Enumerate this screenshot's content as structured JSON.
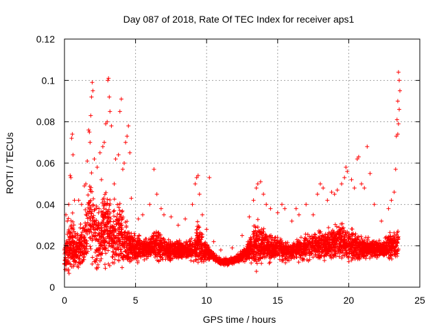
{
  "chart_data": {
    "type": "scatter",
    "title": "Day 087 of 2018, Rate Of TEC Index for receiver aps1",
    "xlabel": "GPS time / hours",
    "ylabel": "ROTI / TECUs",
    "xlim": [
      0,
      25
    ],
    "ylim": [
      0,
      0.12
    ],
    "x_ticks": [
      0,
      5,
      10,
      15,
      20,
      25
    ],
    "x_tick_labels": [
      "0",
      "5",
      "10",
      "15",
      "20",
      "25"
    ],
    "y_ticks": [
      0,
      0.02,
      0.04,
      0.06,
      0.08,
      0.1,
      0.12
    ],
    "y_tick_labels": [
      "0",
      "0.02",
      "0.04",
      "0.06",
      "0.08",
      "0.1",
      "0.12"
    ],
    "grid": true,
    "marker": "plus",
    "color": "#ff0000",
    "envelope": [
      [
        0.0,
        0.022,
        0.012
      ],
      [
        0.3,
        0.035,
        0.014
      ],
      [
        0.5,
        0.04,
        0.015
      ],
      [
        0.8,
        0.03,
        0.013
      ],
      [
        1.0,
        0.028,
        0.014
      ],
      [
        1.3,
        0.035,
        0.016
      ],
      [
        1.6,
        0.05,
        0.02
      ],
      [
        1.9,
        0.06,
        0.024
      ],
      [
        2.2,
        0.04,
        0.02
      ],
      [
        2.6,
        0.045,
        0.022
      ],
      [
        3.0,
        0.055,
        0.026
      ],
      [
        3.4,
        0.04,
        0.022
      ],
      [
        3.8,
        0.045,
        0.022
      ],
      [
        4.2,
        0.04,
        0.021
      ],
      [
        4.6,
        0.03,
        0.018
      ],
      [
        5.0,
        0.028,
        0.018
      ],
      [
        5.5,
        0.025,
        0.018
      ],
      [
        6.0,
        0.024,
        0.018
      ],
      [
        6.5,
        0.03,
        0.019
      ],
      [
        7.0,
        0.025,
        0.018
      ],
      [
        7.5,
        0.024,
        0.017
      ],
      [
        8.0,
        0.023,
        0.017
      ],
      [
        8.5,
        0.022,
        0.017
      ],
      [
        9.0,
        0.026,
        0.018
      ],
      [
        9.4,
        0.035,
        0.02
      ],
      [
        9.8,
        0.025,
        0.017
      ],
      [
        10.2,
        0.02,
        0.016
      ],
      [
        10.6,
        0.016,
        0.014
      ],
      [
        11.0,
        0.014,
        0.012
      ],
      [
        11.5,
        0.014,
        0.012
      ],
      [
        12.0,
        0.015,
        0.013
      ],
      [
        12.5,
        0.018,
        0.015
      ],
      [
        13.0,
        0.024,
        0.017
      ],
      [
        13.5,
        0.035,
        0.02
      ],
      [
        14.0,
        0.03,
        0.019
      ],
      [
        14.5,
        0.026,
        0.018
      ],
      [
        15.0,
        0.025,
        0.018
      ],
      [
        15.5,
        0.024,
        0.017
      ],
      [
        16.0,
        0.023,
        0.017
      ],
      [
        16.5,
        0.025,
        0.018
      ],
      [
        17.0,
        0.026,
        0.018
      ],
      [
        17.5,
        0.028,
        0.019
      ],
      [
        18.0,
        0.03,
        0.02
      ],
      [
        18.5,
        0.03,
        0.02
      ],
      [
        19.0,
        0.032,
        0.021
      ],
      [
        19.5,
        0.032,
        0.021
      ],
      [
        20.0,
        0.03,
        0.02
      ],
      [
        20.5,
        0.028,
        0.019
      ],
      [
        21.0,
        0.025,
        0.018
      ],
      [
        21.5,
        0.024,
        0.018
      ],
      [
        22.0,
        0.024,
        0.018
      ],
      [
        22.5,
        0.024,
        0.018
      ],
      [
        23.0,
        0.028,
        0.019
      ],
      [
        23.5,
        0.03,
        0.02
      ]
    ],
    "points": [
      [
        0.1,
        0.035
      ],
      [
        0.2,
        0.032
      ],
      [
        0.3,
        0.04
      ],
      [
        0.4,
        0.054
      ],
      [
        0.45,
        0.053
      ],
      [
        0.5,
        0.072
      ],
      [
        0.55,
        0.074
      ],
      [
        0.6,
        0.064
      ],
      [
        0.7,
        0.042
      ],
      [
        1.0,
        0.042
      ],
      [
        1.2,
        0.04
      ],
      [
        1.4,
        0.049
      ],
      [
        1.5,
        0.05
      ],
      [
        1.6,
        0.061
      ],
      [
        1.7,
        0.076
      ],
      [
        1.75,
        0.075
      ],
      [
        1.8,
        0.07
      ],
      [
        1.85,
        0.083
      ],
      [
        1.9,
        0.092
      ],
      [
        1.95,
        0.099
      ],
      [
        2.0,
        0.095
      ],
      [
        2.1,
        0.062
      ],
      [
        2.3,
        0.058
      ],
      [
        2.5,
        0.065
      ],
      [
        2.6,
        0.052
      ],
      [
        2.7,
        0.068
      ],
      [
        2.8,
        0.07
      ],
      [
        2.9,
        0.079
      ],
      [
        3.0,
        0.08
      ],
      [
        3.05,
        0.1
      ],
      [
        3.1,
        0.101
      ],
      [
        3.15,
        0.092
      ],
      [
        3.2,
        0.085
      ],
      [
        3.3,
        0.078
      ],
      [
        3.5,
        0.05
      ],
      [
        3.6,
        0.062
      ],
      [
        3.8,
        0.064
      ],
      [
        3.9,
        0.085
      ],
      [
        4.0,
        0.091
      ],
      [
        4.1,
        0.057
      ],
      [
        4.2,
        0.06
      ],
      [
        4.3,
        0.07
      ],
      [
        4.4,
        0.073
      ],
      [
        4.5,
        0.078
      ],
      [
        4.6,
        0.065
      ],
      [
        4.7,
        0.043
      ],
      [
        5.2,
        0.033
      ],
      [
        5.5,
        0.035
      ],
      [
        6.0,
        0.04
      ],
      [
        6.3,
        0.057
      ],
      [
        6.5,
        0.045
      ],
      [
        6.8,
        0.038
      ],
      [
        7.0,
        0.035
      ],
      [
        7.5,
        0.034
      ],
      [
        8.0,
        0.03
      ],
      [
        8.5,
        0.033
      ],
      [
        9.0,
        0.04
      ],
      [
        9.2,
        0.05
      ],
      [
        9.3,
        0.053
      ],
      [
        9.4,
        0.054
      ],
      [
        9.5,
        0.045
      ],
      [
        9.7,
        0.035
      ],
      [
        10.0,
        0.028
      ],
      [
        10.2,
        0.053
      ],
      [
        10.5,
        0.022
      ],
      [
        11.0,
        0.018
      ],
      [
        11.8,
        0.019
      ],
      [
        12.5,
        0.025
      ],
      [
        13.0,
        0.034
      ],
      [
        13.3,
        0.042
      ],
      [
        13.5,
        0.048
      ],
      [
        13.6,
        0.05
      ],
      [
        13.8,
        0.051
      ],
      [
        14.0,
        0.045
      ],
      [
        14.2,
        0.04
      ],
      [
        14.5,
        0.038
      ],
      [
        15.0,
        0.036
      ],
      [
        15.3,
        0.04
      ],
      [
        15.5,
        0.038
      ],
      [
        16.0,
        0.032
      ],
      [
        16.3,
        0.038
      ],
      [
        16.5,
        0.035
      ],
      [
        17.0,
        0.04
      ],
      [
        17.5,
        0.035
      ],
      [
        17.8,
        0.045
      ],
      [
        18.0,
        0.05
      ],
      [
        18.2,
        0.048
      ],
      [
        18.5,
        0.042
      ],
      [
        18.8,
        0.046
      ],
      [
        19.0,
        0.045
      ],
      [
        19.2,
        0.047
      ],
      [
        19.5,
        0.05
      ],
      [
        19.7,
        0.053
      ],
      [
        19.8,
        0.058
      ],
      [
        19.9,
        0.056
      ],
      [
        20.2,
        0.052
      ],
      [
        20.4,
        0.048
      ],
      [
        20.6,
        0.062
      ],
      [
        20.7,
        0.063
      ],
      [
        20.9,
        0.05
      ],
      [
        21.1,
        0.048
      ],
      [
        21.3,
        0.068
      ],
      [
        21.5,
        0.055
      ],
      [
        21.8,
        0.04
      ],
      [
        22.3,
        0.032
      ],
      [
        22.8,
        0.038
      ],
      [
        23.0,
        0.042
      ],
      [
        23.2,
        0.046
      ],
      [
        23.3,
        0.057
      ],
      [
        23.35,
        0.073
      ],
      [
        23.4,
        0.081
      ],
      [
        23.45,
        0.09
      ],
      [
        23.5,
        0.104
      ],
      [
        23.55,
        0.1
      ],
      [
        23.6,
        0.095
      ],
      [
        23.55,
        0.086
      ],
      [
        23.5,
        0.079
      ],
      [
        23.45,
        0.074
      ]
    ],
    "n_background_points": 4200
  }
}
